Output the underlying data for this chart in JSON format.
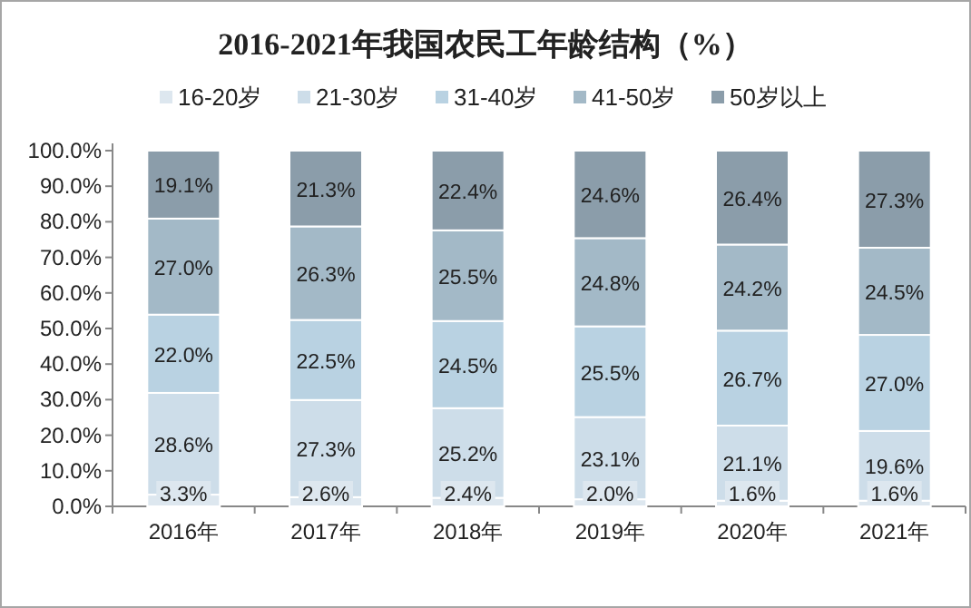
{
  "chart_data": {
    "type": "bar",
    "stacked": true,
    "title": "2016-2021年我国农民工年龄结构（%）",
    "legend": "top",
    "categories": [
      "2016年",
      "2017年",
      "2018年",
      "2019年",
      "2020年",
      "2021年"
    ],
    "series": [
      {
        "name": "16-20岁",
        "color": "#dde7ef",
        "values": [
          3.3,
          2.6,
          2.4,
          2.0,
          1.6,
          1.6
        ],
        "value_labels": [
          "3.3%",
          "2.6%",
          "2.4%",
          "2.0%",
          "1.6%",
          "1.6%"
        ]
      },
      {
        "name": "21-30岁",
        "color": "#cddde9",
        "values": [
          28.6,
          27.3,
          25.2,
          23.1,
          21.1,
          19.6
        ],
        "value_labels": [
          "28.6%",
          "27.3%",
          "25.2%",
          "23.1%",
          "21.1%",
          "19.6%"
        ]
      },
      {
        "name": "31-40岁",
        "color": "#b9d2e2",
        "values": [
          22.0,
          22.5,
          24.5,
          25.5,
          26.7,
          27.0
        ],
        "value_labels": [
          "22.0%",
          "22.5%",
          "24.5%",
          "25.5%",
          "26.7%",
          "27.0%"
        ]
      },
      {
        "name": "41-50岁",
        "color": "#a3b9c7",
        "values": [
          27.0,
          26.3,
          25.5,
          24.8,
          24.2,
          24.5
        ],
        "value_labels": [
          "27.0%",
          "26.3%",
          "25.5%",
          "24.8%",
          "24.2%",
          "24.5%"
        ]
      },
      {
        "name": "50岁以上",
        "color": "#8b9daa",
        "values": [
          19.1,
          21.3,
          22.4,
          24.6,
          26.4,
          27.3
        ],
        "value_labels": [
          "19.1%",
          "21.3%",
          "22.4%",
          "24.6%",
          "26.4%",
          "27.3%"
        ]
      }
    ],
    "ylim": [
      0,
      100
    ],
    "yticks": [
      {
        "value": 0,
        "label": "0.0%"
      },
      {
        "value": 10,
        "label": "10.0%"
      },
      {
        "value": 20,
        "label": "20.0%"
      },
      {
        "value": 30,
        "label": "30.0%"
      },
      {
        "value": 40,
        "label": "40.0%"
      },
      {
        "value": 50,
        "label": "50.0%"
      },
      {
        "value": 60,
        "label": "60.0%"
      },
      {
        "value": 70,
        "label": "70.0%"
      },
      {
        "value": 80,
        "label": "80.0%"
      },
      {
        "value": 90,
        "label": "90.0%"
      },
      {
        "value": 100,
        "label": "100.0%"
      }
    ]
  }
}
